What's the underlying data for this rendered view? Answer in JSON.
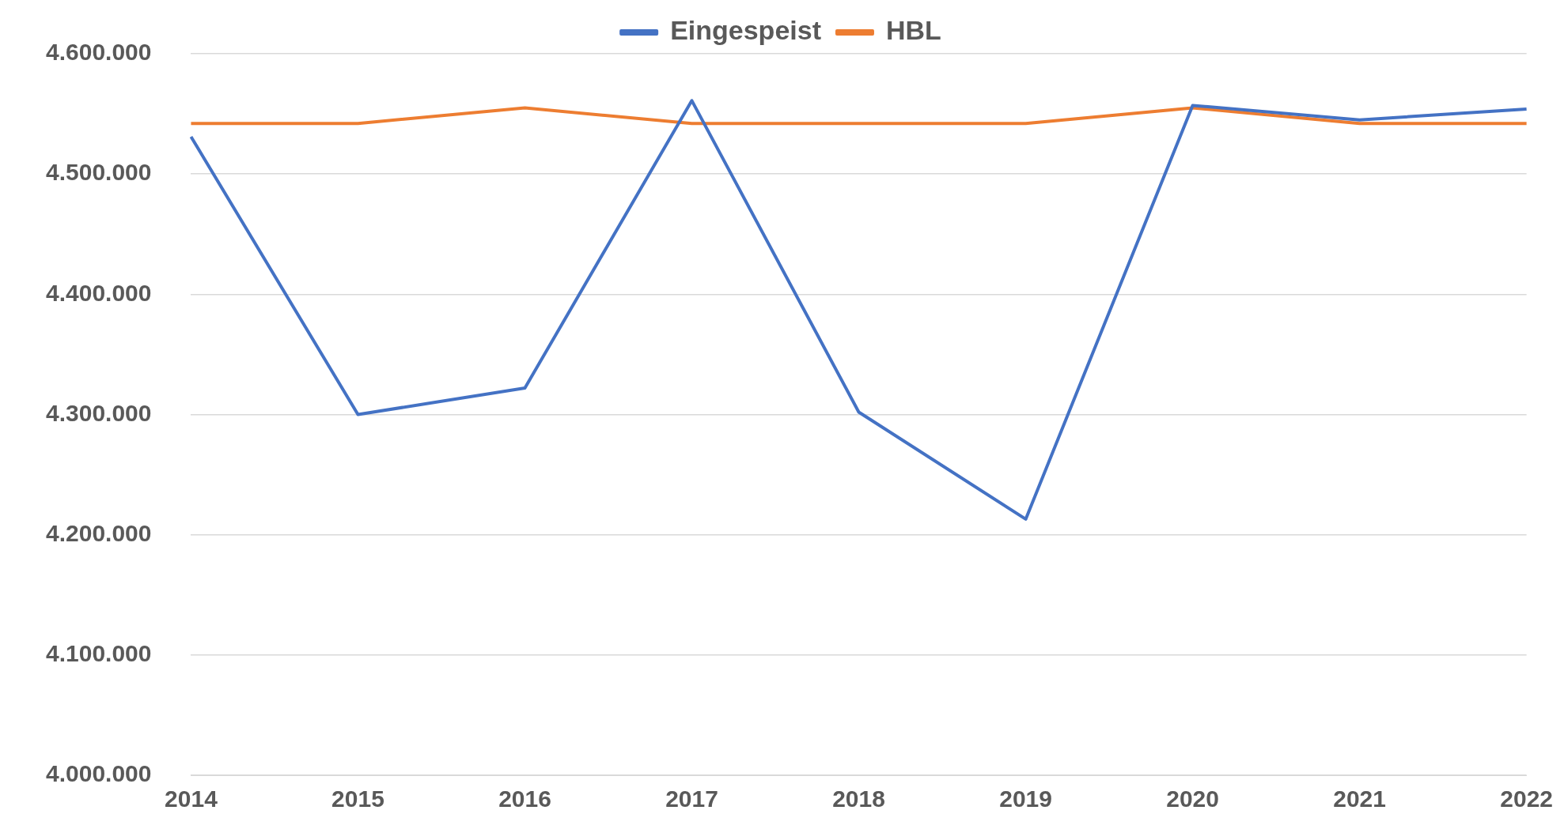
{
  "chart_data": {
    "type": "line",
    "categories": [
      "2014",
      "2015",
      "2016",
      "2017",
      "2018",
      "2019",
      "2020",
      "2021",
      "2022"
    ],
    "series": [
      {
        "name": "Eingespeist",
        "color": "#4472c4",
        "values": [
          4531000,
          4300000,
          4322000,
          4561000,
          4302000,
          4213000,
          4557000,
          4545000,
          4554000
        ]
      },
      {
        "name": "HBL",
        "color": "#ed7d31",
        "values": [
          4542000,
          4542000,
          4555000,
          4542000,
          4542000,
          4542000,
          4555000,
          4542000,
          4542000
        ]
      }
    ],
    "ylim": [
      4000000,
      4600000
    ],
    "yticks": [
      {
        "value": 4000000,
        "label": "4.000.000"
      },
      {
        "value": 4100000,
        "label": "4.100.000"
      },
      {
        "value": 4200000,
        "label": "4.200.000"
      },
      {
        "value": 4300000,
        "label": "4.300.000"
      },
      {
        "value": 4400000,
        "label": "4.400.000"
      },
      {
        "value": 4500000,
        "label": "4.500.000"
      },
      {
        "value": 4600000,
        "label": "4.600.000"
      }
    ],
    "grid": "y",
    "legend": "top",
    "marker": "none",
    "line_style": "solid"
  }
}
